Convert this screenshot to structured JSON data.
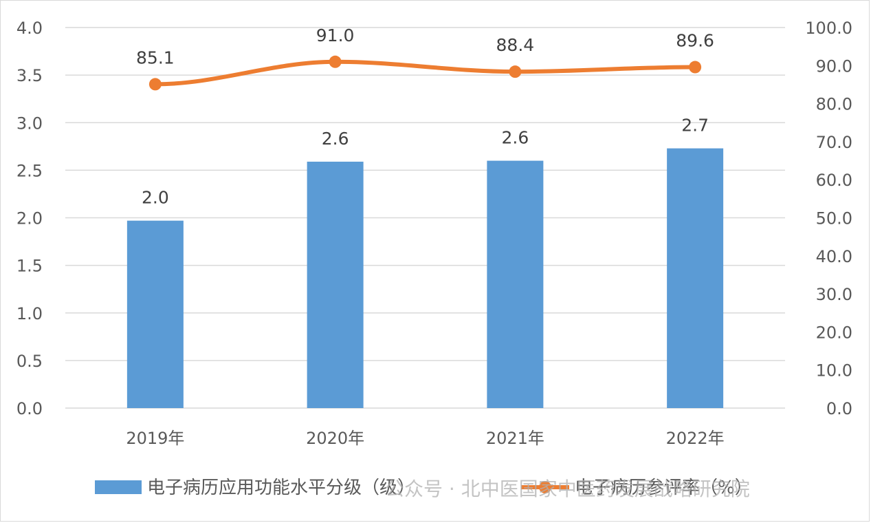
{
  "chart_data": {
    "type": "bar",
    "categories": [
      "2019年",
      "2020年",
      "2021年",
      "2022年"
    ],
    "series": [
      {
        "name": "电子病历应用功能水平分级（级）",
        "type": "bar",
        "axis": "left",
        "values": [
          1.97,
          2.59,
          2.6,
          2.73
        ],
        "labels": [
          "2.0",
          "2.6",
          "2.6",
          "2.7"
        ],
        "color": "#5b9bd5"
      },
      {
        "name": "电子病历参评率（%）",
        "type": "line",
        "axis": "right",
        "values": [
          85.1,
          91.0,
          88.4,
          89.6
        ],
        "labels": [
          "85.1",
          "91.0",
          "88.4",
          "89.6"
        ],
        "color": "#ed7d31"
      }
    ],
    "y_left": {
      "min": 0,
      "max": 4.0,
      "step": 0.5,
      "ticks": [
        "0.0",
        "0.5",
        "1.0",
        "1.5",
        "2.0",
        "2.5",
        "3.0",
        "3.5",
        "4.0"
      ]
    },
    "y_right": {
      "min": 0,
      "max": 100.0,
      "step": 10,
      "ticks": [
        "0.0",
        "10.0",
        "20.0",
        "30.0",
        "40.0",
        "50.0",
        "60.0",
        "70.0",
        "80.0",
        "90.0",
        "100.0"
      ]
    },
    "grid": true,
    "legend_position": "bottom",
    "title": "",
    "xlabel": "",
    "ylabel": ""
  },
  "watermark": "公众号 · 北中医国家中医药发展战略研究院",
  "colors": {
    "grid": "#d9d9d9",
    "tick_text": "#595959",
    "label_text": "#404040"
  }
}
